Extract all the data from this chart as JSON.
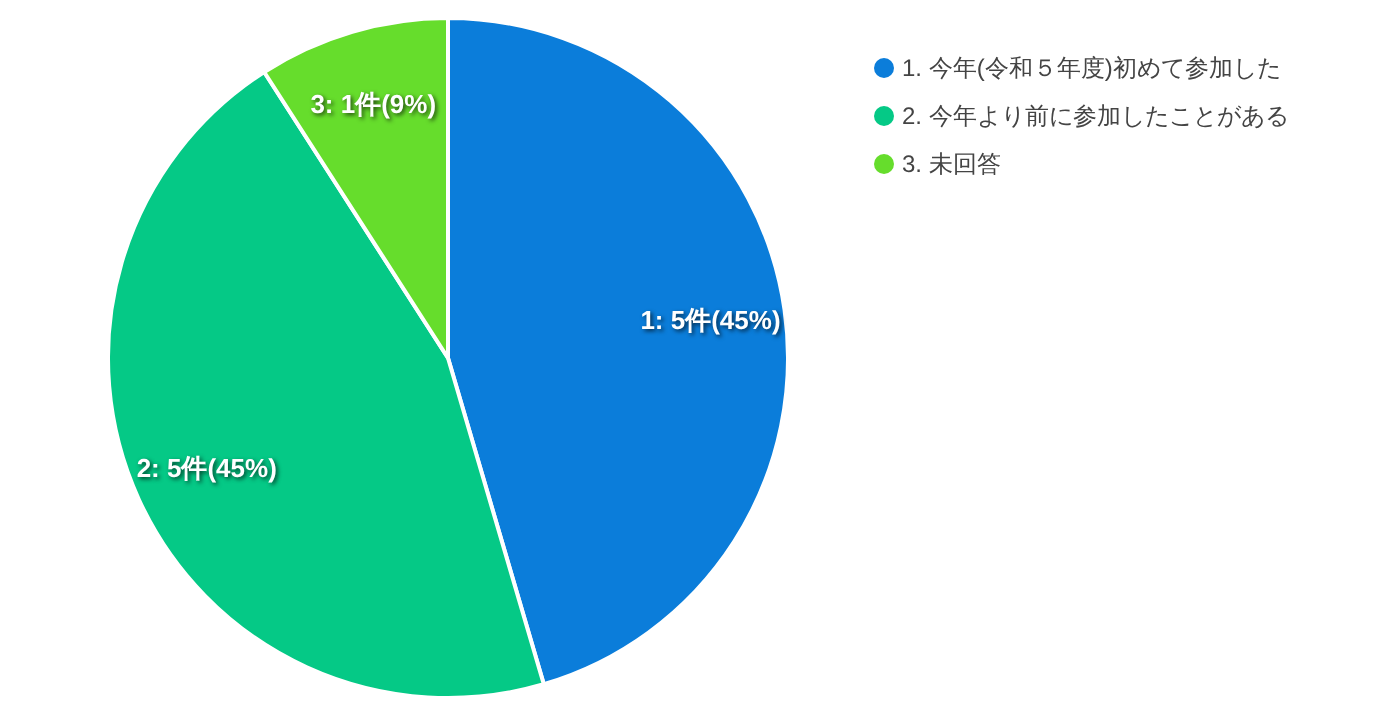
{
  "chart_data": {
    "type": "pie",
    "categories": [
      "1. 今年(令和５年度)初めて参加した",
      "2. 今年より前に参加したことがある",
      "3. 未回答"
    ],
    "values": [
      5,
      5,
      1
    ],
    "colors": [
      "#0b7dda",
      "#05c986",
      "#66dd2c"
    ],
    "value_labels": [
      "1: 5件(45%)",
      "2: 5件(45%)",
      "3: 1件(9%)"
    ],
    "legend": "top right"
  }
}
